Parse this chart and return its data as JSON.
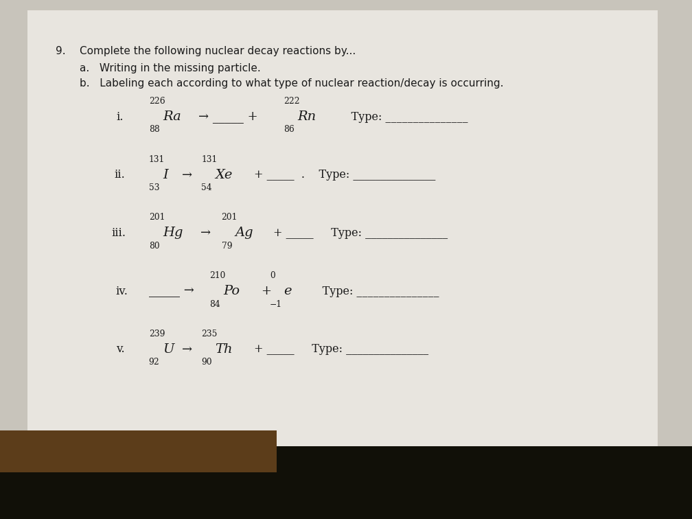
{
  "background_paper": "#c8c4bb",
  "background_page": "#e8e5df",
  "text_color": "#1a1a1a",
  "title_num": "9.",
  "title_text": "Complete the following nuclear decay reactions by...",
  "sub_a": "a.   Writing in the missing particle.",
  "sub_b": "b.   Labeling each according to what type of nuclear reaction/decay is occurring.",
  "bottom_color": "#111008",
  "wood_color": "#5c3d1a"
}
